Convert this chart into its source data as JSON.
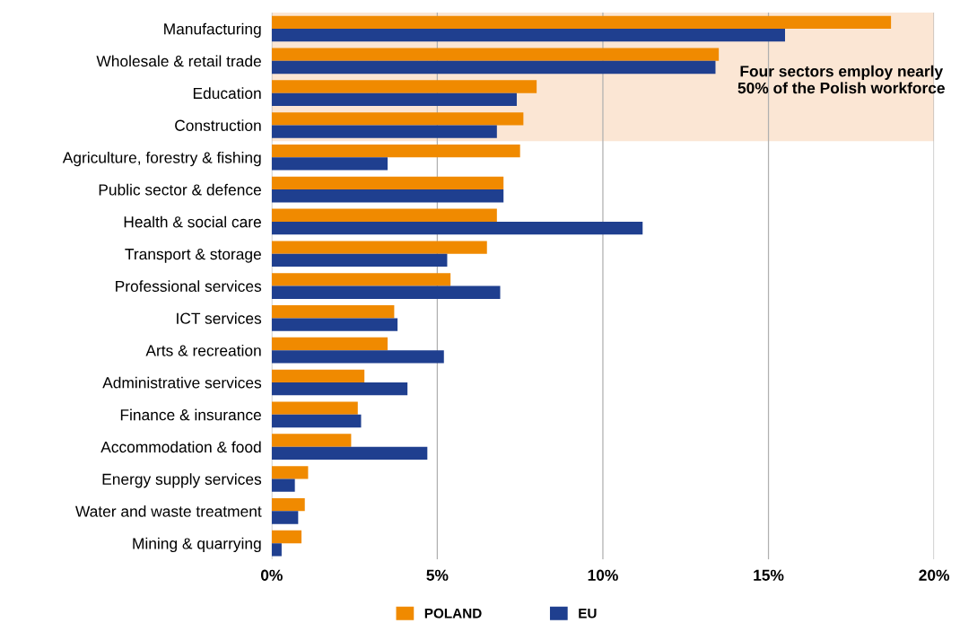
{
  "chart_data": {
    "type": "bar",
    "orientation": "horizontal",
    "categories": [
      "Manufacturing",
      "Wholesale & retail trade",
      "Education",
      "Construction",
      "Agriculture, forestry & fishing",
      "Public sector & defence",
      "Health & social care",
      "Transport & storage",
      "Professional services",
      "ICT services",
      "Arts & recreation",
      "Administrative services",
      "Finance & insurance",
      "Accommodation & food",
      "Energy supply services",
      "Water and waste treatment",
      "Mining & quarrying"
    ],
    "series": [
      {
        "name": "POLAND",
        "color": "#f08a00",
        "values": [
          18.7,
          13.5,
          8.0,
          7.6,
          7.5,
          7.0,
          6.8,
          6.5,
          5.4,
          3.7,
          3.5,
          2.8,
          2.6,
          2.4,
          1.1,
          1.0,
          0.9
        ]
      },
      {
        "name": "EU",
        "color": "#1f3f8f",
        "values": [
          15.5,
          13.4,
          7.4,
          6.8,
          3.5,
          7.0,
          11.2,
          5.3,
          6.9,
          3.8,
          5.2,
          4.1,
          2.7,
          4.7,
          0.7,
          0.8,
          0.3
        ]
      }
    ],
    "xlim": [
      0,
      20
    ],
    "xticks": [
      {
        "value": 0,
        "label": "0%"
      },
      {
        "value": 5,
        "label": "5%"
      },
      {
        "value": 10,
        "label": "10%"
      },
      {
        "value": 15,
        "label": "15%"
      },
      {
        "value": 20,
        "label": "20%"
      }
    ],
    "grid": "x",
    "legend": "bottom",
    "bands": [
      {
        "axis": "y",
        "from": "Manufacturing",
        "to": "Construction",
        "color": "#fbe6d4"
      }
    ],
    "annotations": [
      "Four sectors employ nearly\n50% of the Polish workforce"
    ]
  }
}
